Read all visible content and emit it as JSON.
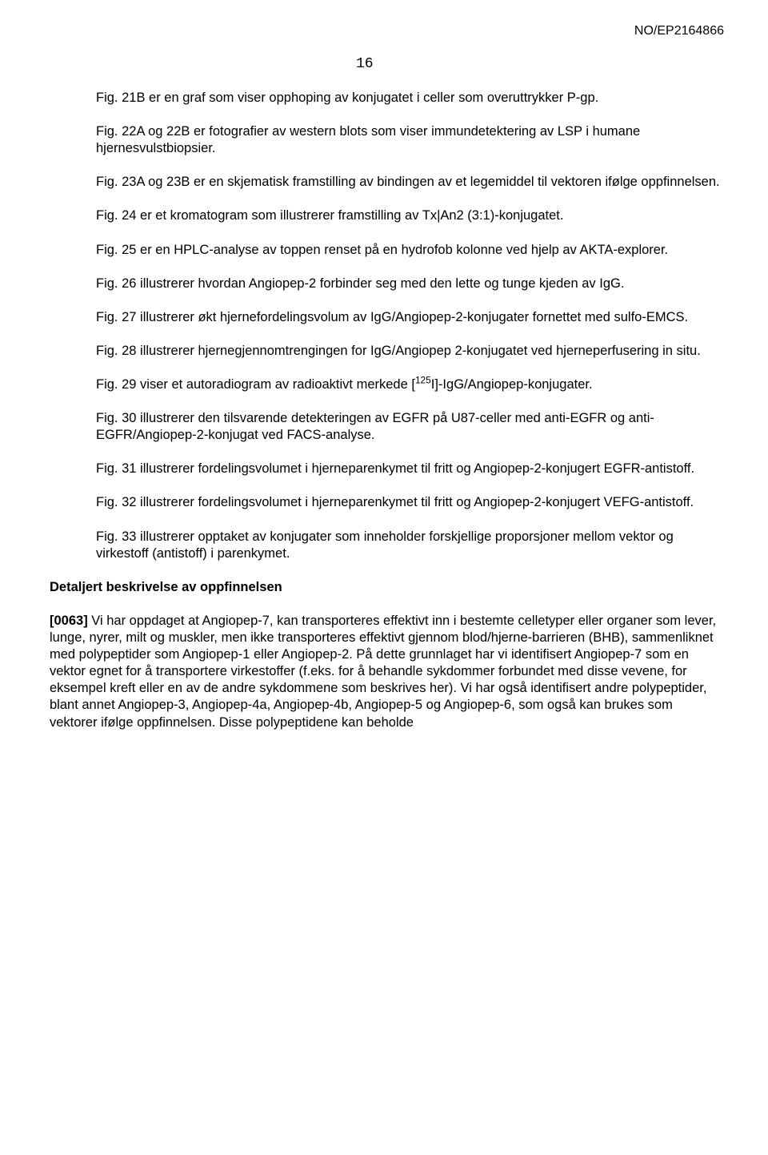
{
  "header": {
    "doc_id": "NO/EP2164866"
  },
  "page_number": "16",
  "paragraphs": [
    "Fig. 21B er en graf som viser opphoping av konjugatet i celler som overuttrykker P-gp.",
    "Fig. 22A og 22B er fotografier av western blots som viser immundetektering av LSP i humane hjernesvulstbiopsier.",
    "Fig. 23A og 23B er en skjematisk framstilling av bindingen av et legemiddel til vektoren ifølge oppfinnelsen.",
    "Fig. 24 er et kromatogram som illustrerer framstilling av Tx|An2 (3:1)-konjugatet.",
    "Fig. 25 er en HPLC-analyse av toppen renset på en hydrofob kolonne ved hjelp av AKTA-explorer.",
    "Fig. 26 illustrerer hvordan Angiopep-2 forbinder seg med den lette og tunge kjeden av IgG.",
    "Fig. 27 illustrerer økt hjernefordelingsvolum av IgG/Angiopep-2-konjugater fornettet med sulfo-EMCS.",
    "Fig. 28 illustrerer hjernegjennomtrengingen for IgG/Angiopep 2-konjugatet ved hjerneperfusering in situ.",
    "",
    "Fig. 30 illustrerer den tilsvarende detekteringen av EGFR på U87-celler med anti-EGFR og anti-EGFR/Angiopep-2-konjugat ved FACS-analyse.",
    "Fig. 31 illustrerer fordelingsvolumet i hjerneparenkymet til fritt og Angiopep-2-konjugert EGFR-antistoff.",
    "Fig. 32 illustrerer fordelingsvolumet i hjerneparenkymet til fritt og Angiopep-2-konjugert VEFG-antistoff.",
    "Fig. 33 illustrerer opptaket av konjugater som inneholder forskjellige proporsjoner mellom vektor og virkestoff (antistoff) i parenkymet."
  ],
  "fig29": {
    "pre": "Fig. 29 viser et autoradiogram av radioaktivt merkede [",
    "sup": "125",
    "post": "I]-IgG/Angiopep-konjugater."
  },
  "section_heading": "Detaljert beskrivelse av oppfinnelsen",
  "final_paragraph_prefix": "[0063] ",
  "final_paragraph_text": "Vi har oppdaget at Angiopep-7, kan transporteres effektivt inn i bestemte celletyper eller organer som lever, lunge, nyrer, milt og muskler, men ikke transporteres effektivt gjennom blod/hjerne-barrieren (BHB), sammenliknet med polypeptider som Angiopep-1 eller Angiopep-2. På dette grunnlaget har vi identifisert Angiopep-7 som en vektor egnet for å transportere virkestoffer (f.eks. for å behandle sykdommer forbundet med disse vevene, for eksempel kreft eller en av de andre sykdommene som beskrives her). Vi har også identifisert andre polypeptider, blant annet Angiopep-3, Angiopep-4a, Angiopep-4b, Angiopep-5 og Angiopep-6, som også kan brukes som vektorer ifølge oppfinnelsen. Disse polypeptidene kan beholde"
}
